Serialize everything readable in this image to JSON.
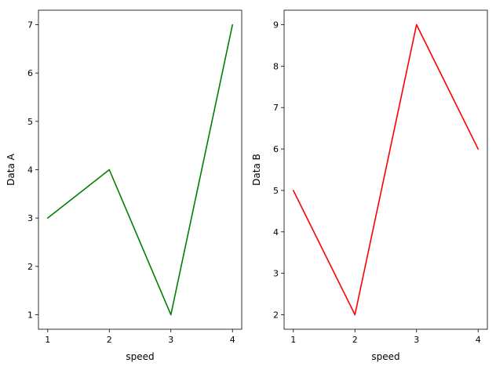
{
  "chart_data": [
    {
      "type": "line",
      "xlabel": "speed",
      "ylabel": "Data A",
      "x": [
        1,
        2,
        3,
        4
      ],
      "series": [
        {
          "values": [
            3,
            4,
            1,
            7
          ],
          "color": "#008000"
        }
      ],
      "xlim": [
        0.85,
        4.15
      ],
      "ylim": [
        0.7,
        7.3
      ],
      "xticks": [
        1,
        2,
        3,
        4
      ],
      "yticks": [
        1,
        2,
        3,
        4,
        5,
        6,
        7
      ],
      "grid": false
    },
    {
      "type": "line",
      "xlabel": "speed",
      "ylabel": "Data B",
      "x": [
        1,
        2,
        3,
        4
      ],
      "series": [
        {
          "values": [
            5,
            2,
            9,
            6
          ],
          "color": "#ff0000"
        }
      ],
      "xlim": [
        0.85,
        4.15
      ],
      "ylim": [
        1.65,
        9.35
      ],
      "xticks": [
        1,
        2,
        3,
        4
      ],
      "yticks": [
        2,
        3,
        4,
        5,
        6,
        7,
        8,
        9
      ],
      "grid": false
    }
  ]
}
